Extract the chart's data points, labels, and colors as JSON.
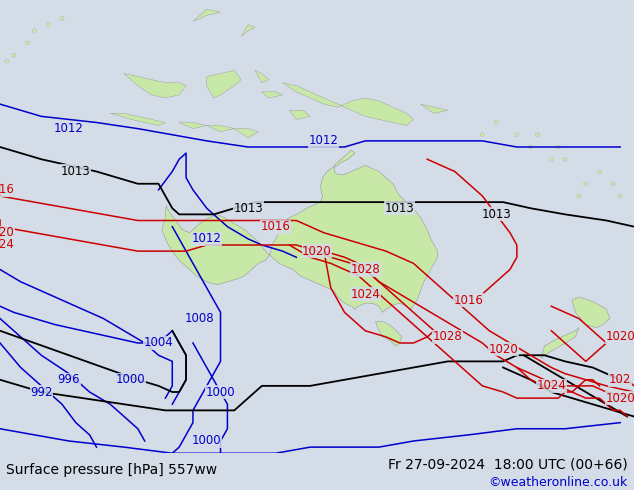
{
  "title_left": "Surface pressure [hPa] 557ww",
  "title_right": "Fr 27-09-2024  18:00 UTC (00+66)",
  "watermark": "©weatheronline.co.uk",
  "bg_color": "#d4dce8",
  "land_color": "#c8e8a8",
  "land_border_color": "#999999",
  "contour_blue": "#0000cc",
  "contour_red": "#cc0000",
  "contour_black": "#000000",
  "lon_min": 90,
  "lon_max": 182,
  "lat_min": -62,
  "lat_max": 12,
  "bottom_bar_color": "#e0e0e0",
  "bottom_bar_height": 0.075
}
